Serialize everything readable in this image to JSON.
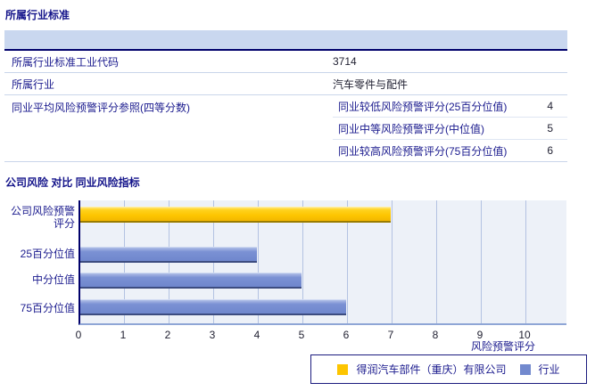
{
  "industry_table": {
    "title": "所属行业标准",
    "rows": [
      {
        "label": "所属行业标准工业代码",
        "value": "3714"
      },
      {
        "label": "所属行业",
        "value": "汽车零件与配件"
      }
    ],
    "quartile_row": {
      "label": "同业平均风险预警评分参照(四等分数)",
      "items": [
        {
          "label": "同业较低风险预警评分(25百分位值)",
          "value": "4"
        },
        {
          "label": "同业中等风险预警评分(中位值)",
          "value": "5"
        },
        {
          "label": "同业较高风险预警评分(75百分位值)",
          "value": "6"
        }
      ]
    }
  },
  "chart_section": {
    "title": "公司风险 对比 同业风险指标"
  },
  "chart_data": {
    "type": "bar",
    "orientation": "horizontal",
    "title": "公司风险 对比 同业风险指标",
    "categories": [
      "公司风险预警评分",
      "25百分位值",
      "中分位值",
      "75百分位值"
    ],
    "values": [
      7,
      4,
      5,
      6
    ],
    "series": [
      {
        "name": "得润汽车部件（重庆）有限公司",
        "color": "#fdc500",
        "values": [
          7,
          null,
          null,
          null
        ]
      },
      {
        "name": "行业",
        "color": "#7289ce",
        "values": [
          null,
          4,
          5,
          6
        ]
      }
    ],
    "xlabel": "风险预警评分",
    "x_ticks": [
      "0",
      "1",
      "2",
      "3",
      "4",
      "5",
      "6",
      "7",
      "8",
      "9",
      "10"
    ],
    "xlim": [
      0,
      10
    ],
    "grid": "vertical",
    "legend_position": "bottom-right"
  },
  "legend": {
    "items": [
      {
        "label": "得润汽车部件（重庆）有限公司",
        "color": "#fdc500"
      },
      {
        "label": "行业",
        "color": "#7289ce"
      }
    ]
  },
  "colors": {
    "text_navy": "#1b1b8e",
    "header_band": "#c9d7ef",
    "header_border": "#00006b",
    "plot_background": "#edf1f8",
    "gridline": "#b3c2e2",
    "bar_company": "#fdc500",
    "bar_industry": "#7289ce"
  }
}
